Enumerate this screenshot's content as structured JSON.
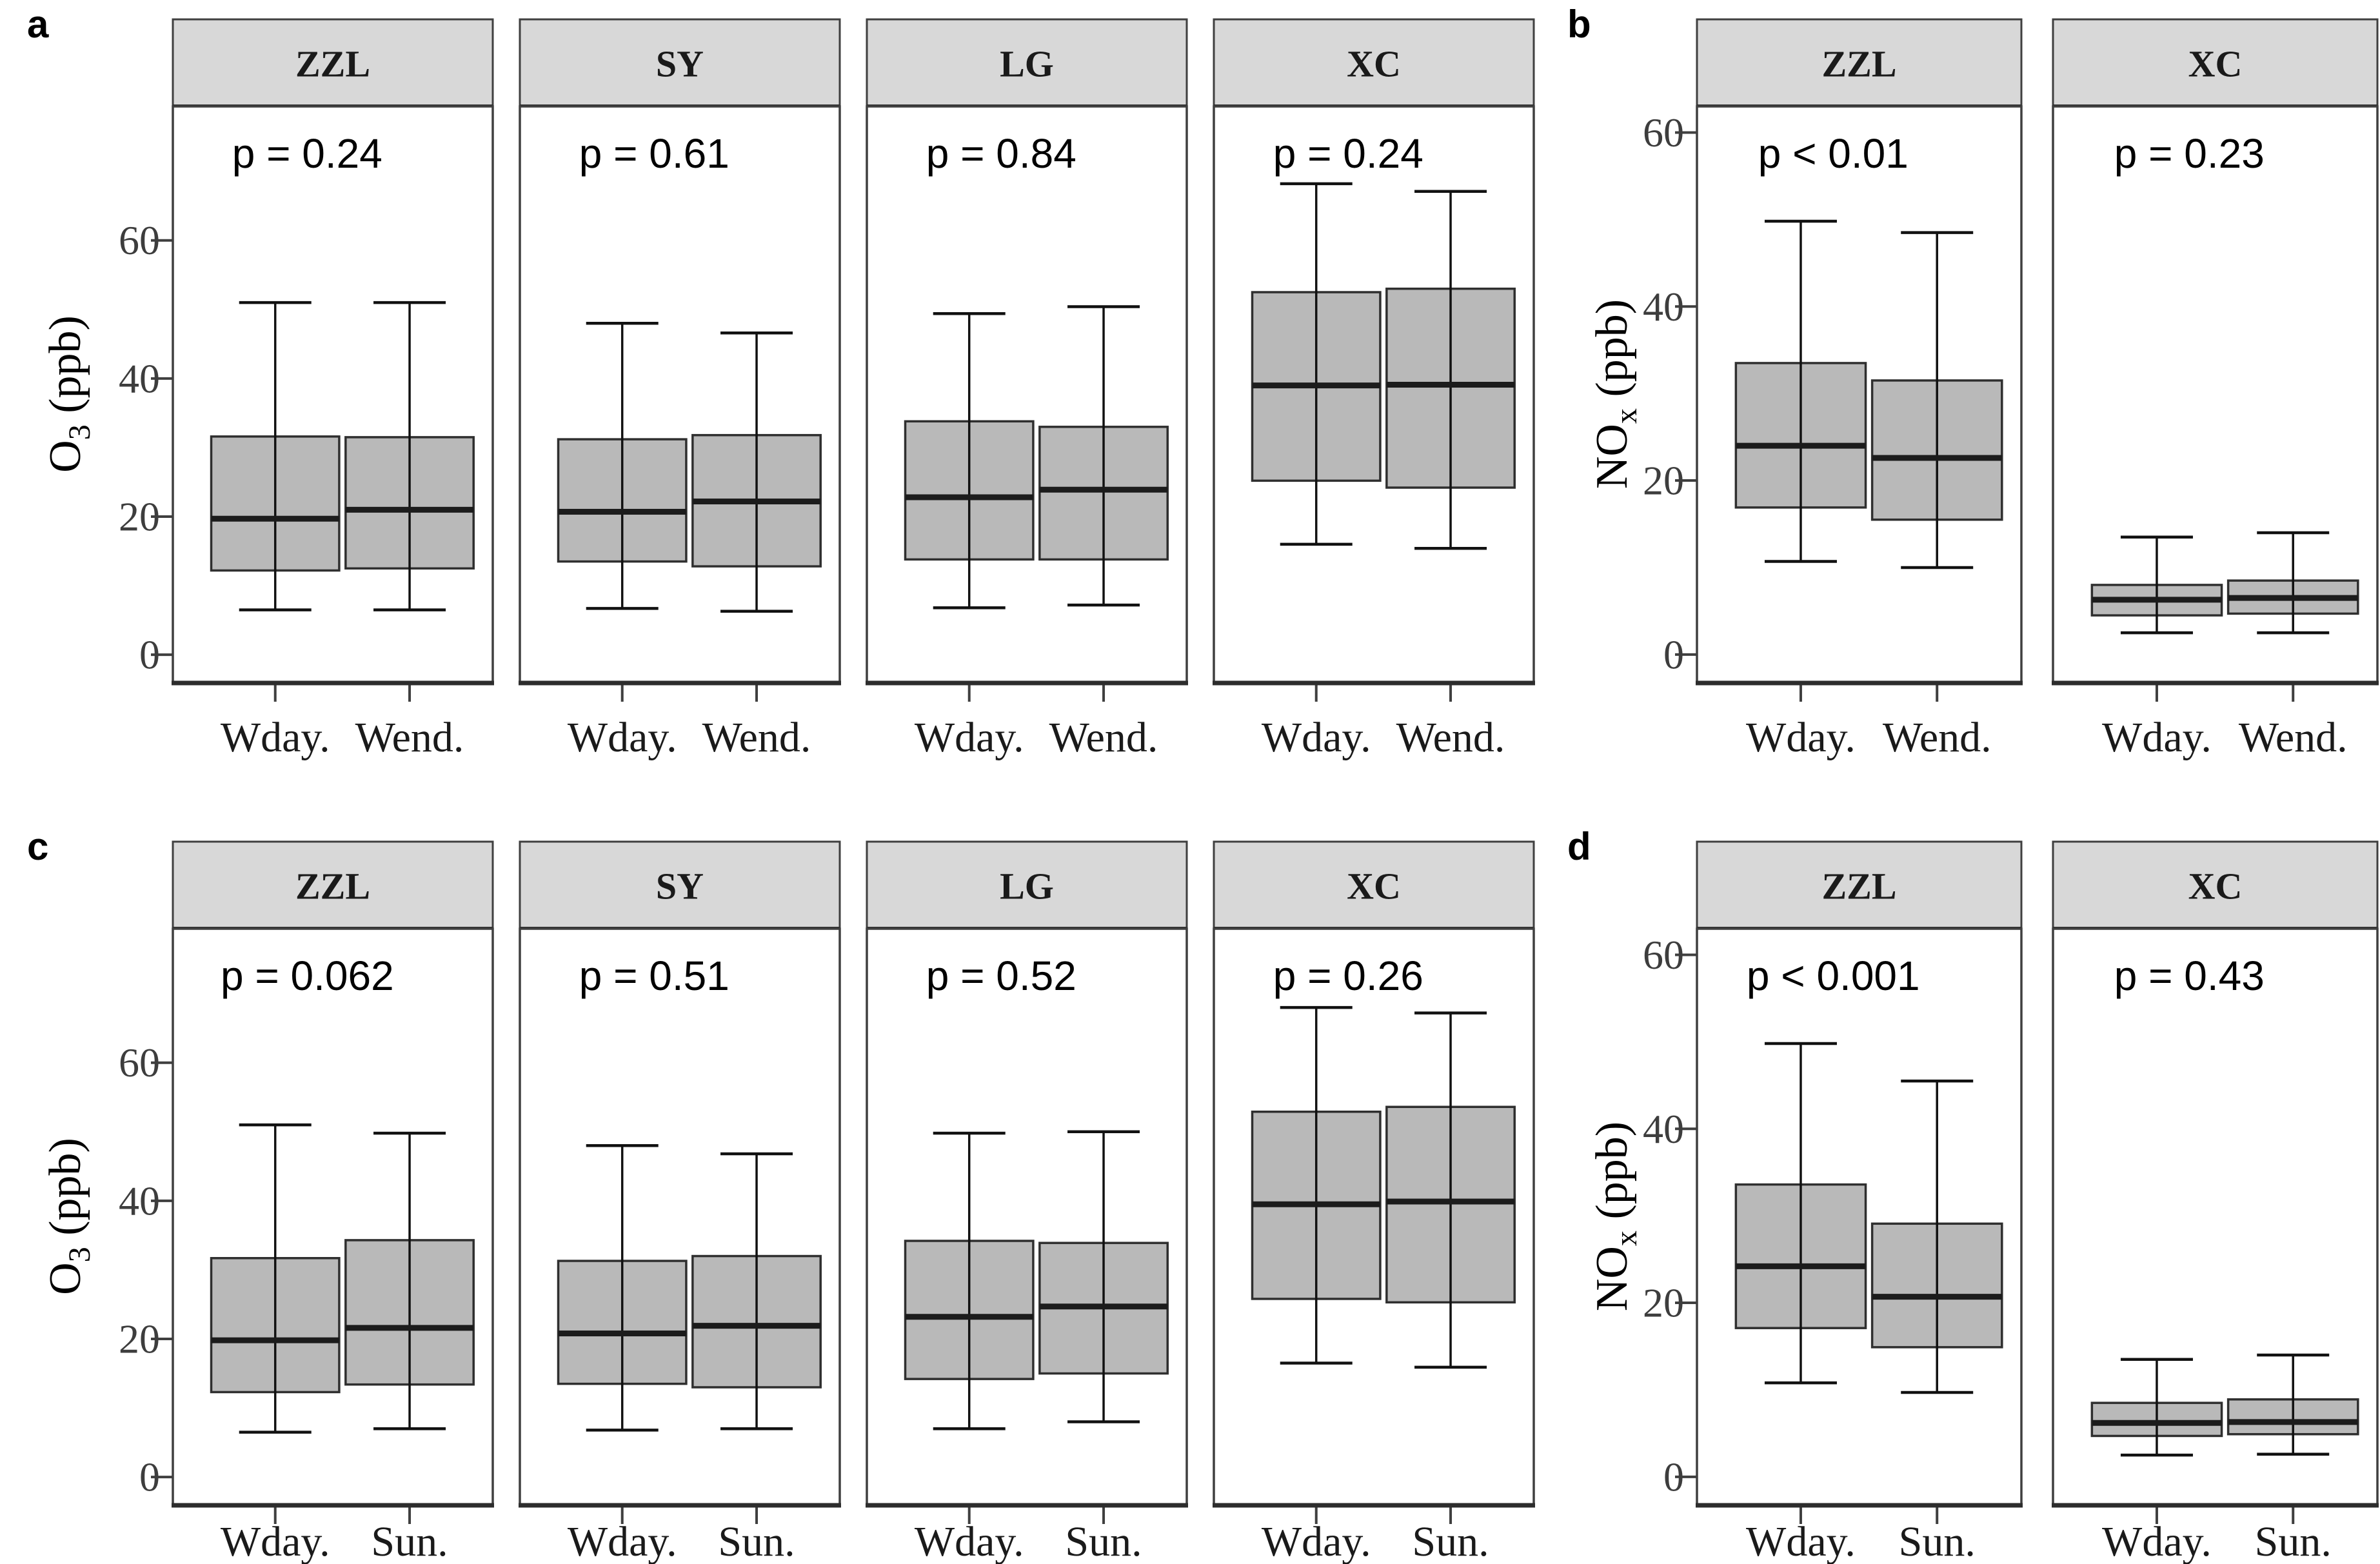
{
  "figure": {
    "background": "#ffffff",
    "strip_fill": "#d8d8d8",
    "strip_stroke": "#3f3f3f",
    "panel_stroke": "#3f3f3f",
    "box_fill": "#b9b9b9",
    "box_stroke": "#2f2f2f",
    "median_color": "#1c1c1c",
    "whisker_color": "#111111",
    "tick_label_color": "#3d3d3d",
    "text_color": "#000000"
  },
  "chart_data": [
    {
      "id": "a",
      "letter": "a",
      "type": "boxplot",
      "ylabel": {
        "main": "O",
        "sub": "3",
        "rest": " (ppb)"
      },
      "yticks": [
        0,
        20,
        40,
        60
      ],
      "ylim": [
        -4,
        79.4
      ],
      "legend_position": "none",
      "grid": false,
      "facets": [
        {
          "title": "ZZL",
          "p_label": "p = 0.24",
          "boxes": [
            {
              "label": "Wday.",
              "whislo": 6.5,
              "q1": 12.2,
              "med": 19.7,
              "q3": 31.6,
              "whishi": 51.0
            },
            {
              "label": "Wend.",
              "whislo": 6.5,
              "q1": 12.5,
              "med": 21.0,
              "q3": 31.5,
              "whishi": 51.0
            }
          ]
        },
        {
          "title": "SY",
          "p_label": "p = 0.61",
          "boxes": [
            {
              "label": "Wday.",
              "whislo": 6.7,
              "q1": 13.5,
              "med": 20.7,
              "q3": 31.2,
              "whishi": 48.0
            },
            {
              "label": "Wend.",
              "whislo": 6.3,
              "q1": 12.8,
              "med": 22.2,
              "q3": 31.8,
              "whishi": 46.6
            }
          ]
        },
        {
          "title": "LG",
          "p_label": "p = 0.84",
          "boxes": [
            {
              "label": "Wday.",
              "whislo": 6.8,
              "q1": 13.8,
              "med": 22.8,
              "q3": 33.8,
              "whishi": 49.4
            },
            {
              "label": "Wend.",
              "whislo": 7.2,
              "q1": 13.8,
              "med": 23.9,
              "q3": 33.0,
              "whishi": 50.4
            }
          ]
        },
        {
          "title": "XC",
          "p_label": "p = 0.24",
          "boxes": [
            {
              "label": "Wday.",
              "whislo": 16.0,
              "q1": 25.2,
              "med": 39.0,
              "q3": 52.5,
              "whishi": 68.2
            },
            {
              "label": "Wend.",
              "whislo": 15.4,
              "q1": 24.2,
              "med": 39.1,
              "q3": 53.0,
              "whishi": 67.1
            }
          ]
        }
      ]
    },
    {
      "id": "b",
      "letter": "b",
      "type": "boxplot",
      "ylabel": {
        "main": "NO",
        "sub": "x",
        "rest": " (ppb)"
      },
      "yticks": [
        0,
        20,
        40,
        60
      ],
      "ylim": [
        -3.2,
        63
      ],
      "legend_position": "none",
      "grid": false,
      "facets": [
        {
          "title": "ZZL",
          "p_label": "p < 0.01",
          "boxes": [
            {
              "label": "Wday.",
              "whislo": 10.7,
              "q1": 16.9,
              "med": 24.0,
              "q3": 33.5,
              "whishi": 49.8
            },
            {
              "label": "Wend.",
              "whislo": 10.0,
              "q1": 15.5,
              "med": 22.6,
              "q3": 31.5,
              "whishi": 48.5
            }
          ]
        },
        {
          "title": "XC",
          "p_label": "p = 0.23",
          "boxes": [
            {
              "label": "Wday.",
              "whislo": 2.5,
              "q1": 4.5,
              "med": 6.3,
              "q3": 8.0,
              "whishi": 13.5
            },
            {
              "label": "Wend.",
              "whislo": 2.5,
              "q1": 4.7,
              "med": 6.5,
              "q3": 8.5,
              "whishi": 14.0
            }
          ]
        }
      ]
    },
    {
      "id": "c",
      "letter": "c",
      "type": "boxplot",
      "ylabel": {
        "main": "O",
        "sub": "3",
        "rest": " (ppb)"
      },
      "yticks": [
        0,
        20,
        40,
        60
      ],
      "ylim": [
        -4,
        79.4
      ],
      "legend_position": "none",
      "grid": false,
      "facets": [
        {
          "title": "ZZL",
          "p_label": "p = 0.062",
          "boxes": [
            {
              "label": "Wday.",
              "whislo": 6.5,
              "q1": 12.3,
              "med": 19.8,
              "q3": 31.7,
              "whishi": 51.0
            },
            {
              "label": "Sun.",
              "whislo": 7.0,
              "q1": 13.4,
              "med": 21.6,
              "q3": 34.3,
              "whishi": 49.8
            }
          ]
        },
        {
          "title": "SY",
          "p_label": "p = 0.51",
          "boxes": [
            {
              "label": "Wday.",
              "whislo": 6.8,
              "q1": 13.5,
              "med": 20.8,
              "q3": 31.3,
              "whishi": 48.0
            },
            {
              "label": "Sun.",
              "whislo": 7.0,
              "q1": 13.0,
              "med": 21.9,
              "q3": 32.0,
              "whishi": 46.8
            }
          ]
        },
        {
          "title": "LG",
          "p_label": "p = 0.52",
          "boxes": [
            {
              "label": "Wday.",
              "whislo": 7.0,
              "q1": 14.2,
              "med": 23.2,
              "q3": 34.2,
              "whishi": 49.8
            },
            {
              "label": "Sun.",
              "whislo": 8.0,
              "q1": 15.0,
              "med": 24.7,
              "q3": 33.9,
              "whishi": 50.0
            }
          ]
        },
        {
          "title": "XC",
          "p_label": "p = 0.26",
          "boxes": [
            {
              "label": "Wday.",
              "whislo": 16.5,
              "q1": 25.8,
              "med": 39.5,
              "q3": 52.9,
              "whishi": 68.0
            },
            {
              "label": "Sun.",
              "whislo": 15.9,
              "q1": 25.3,
              "med": 39.9,
              "q3": 53.6,
              "whishi": 67.2
            }
          ]
        }
      ]
    },
    {
      "id": "d",
      "letter": "d",
      "type": "boxplot",
      "ylabel": {
        "main": "NO",
        "sub": "x",
        "rest": " (ppb)"
      },
      "yticks": [
        0,
        20,
        40,
        60
      ],
      "ylim": [
        -3.2,
        63
      ],
      "legend_position": "none",
      "grid": false,
      "facets": [
        {
          "title": "ZZL",
          "p_label": "p < 0.001",
          "boxes": [
            {
              "label": "Wday.",
              "whislo": 10.8,
              "q1": 17.1,
              "med": 24.2,
              "q3": 33.6,
              "whishi": 49.8
            },
            {
              "label": "Sun.",
              "whislo": 9.7,
              "q1": 14.9,
              "med": 20.7,
              "q3": 29.1,
              "whishi": 45.5
            }
          ]
        },
        {
          "title": "XC",
          "p_label": "p = 0.43",
          "boxes": [
            {
              "label": "Wday.",
              "whislo": 2.5,
              "q1": 4.7,
              "med": 6.2,
              "q3": 8.5,
              "whishi": 13.5
            },
            {
              "label": "Sun.",
              "whislo": 2.6,
              "q1": 4.9,
              "med": 6.3,
              "q3": 8.9,
              "whishi": 14.0
            }
          ]
        }
      ]
    }
  ]
}
